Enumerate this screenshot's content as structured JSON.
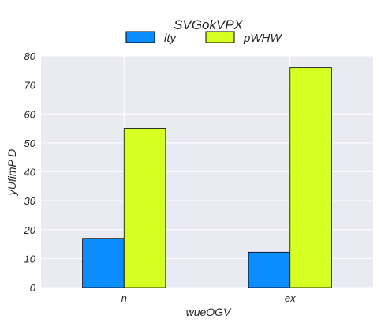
{
  "chart_data": {
    "type": "bar",
    "title": "SVGokVPX",
    "xlabel": "wueOGV",
    "ylabel": "yUfimP  D",
    "categories": [
      "n",
      "ex"
    ],
    "series": [
      {
        "name": "lty",
        "values": [
          17,
          12.2
        ],
        "color": "#0b8cff"
      },
      {
        "name": "pWHW",
        "values": [
          55,
          76
        ],
        "color": "#d6ff22"
      }
    ],
    "ylim": [
      0,
      80
    ],
    "yticks": [
      "0",
      "10",
      "20",
      "30",
      "40",
      "50",
      "60",
      "70",
      "80"
    ],
    "grid": true,
    "legend_position": "top-center",
    "background": "#eaeaf2"
  }
}
